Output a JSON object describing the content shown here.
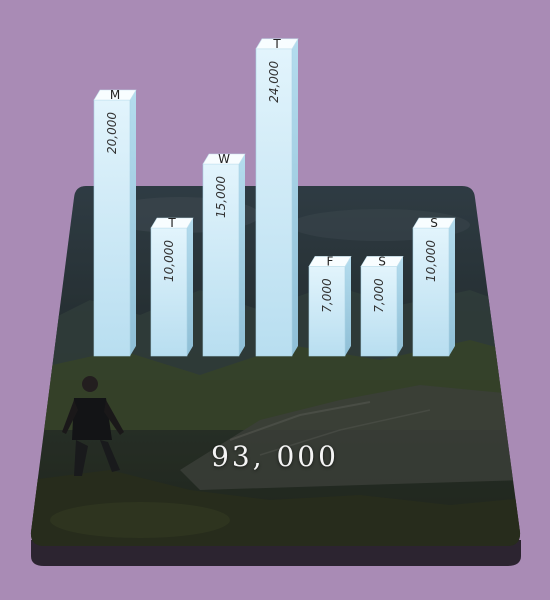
{
  "chart_data": {
    "type": "bar",
    "categories": [
      "M",
      "T",
      "W",
      "T",
      "F",
      "S",
      "S"
    ],
    "values": [
      20000,
      10000,
      15000,
      24000,
      7000,
      7000,
      10000
    ],
    "value_labels": [
      "20,000",
      "10,000",
      "15,000",
      "24,000",
      "7,000",
      "7,000",
      "10,000"
    ],
    "total": "93, 000"
  },
  "colors": {
    "background": "#a98bb5",
    "bar_top": "#f8fdff",
    "bar_front_top": "#e2f4fc",
    "bar_front_bottom": "#b8def0",
    "bar_side": "#9cc7dc",
    "platform_base": "#2c2430"
  },
  "scene": {
    "platform_image": "mountain-landscape-with-hiker"
  }
}
